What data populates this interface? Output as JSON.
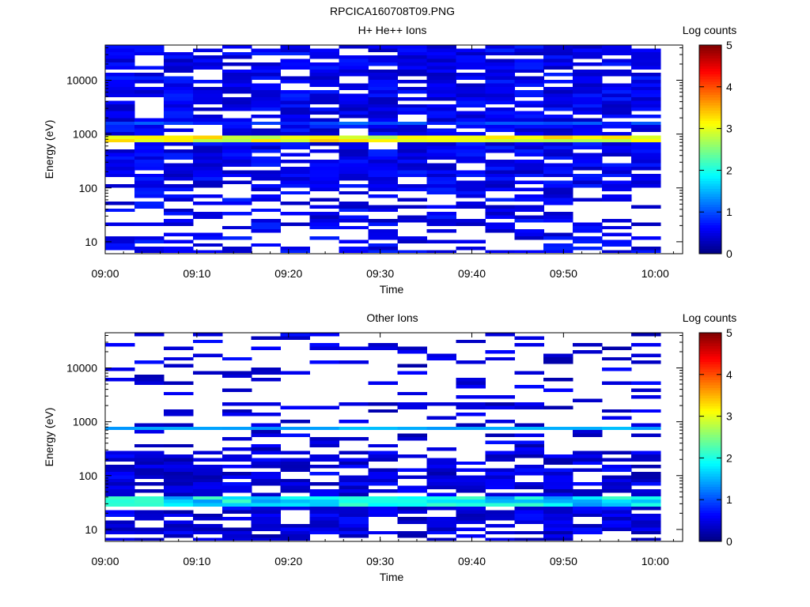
{
  "figure_title": "RPCICA160708T09.PNG",
  "colorbar": {
    "label": "Log counts",
    "range": [
      0,
      5
    ],
    "ticks": [
      "0",
      "1",
      "2",
      "3",
      "4",
      "5"
    ]
  },
  "chart_data": [
    {
      "type": "heatmap",
      "title": "H+ He++ Ions",
      "xlabel": "Time",
      "ylabel": "Energy (eV)",
      "x_ticks": [
        "09:00",
        "09:10",
        "09:20",
        "09:30",
        "09:40",
        "09:50",
        "10:00"
      ],
      "y_ticks": [
        "10",
        "100",
        "1000",
        "10000"
      ],
      "y_scale": "log",
      "x_range": [
        "09:00",
        "10:03"
      ],
      "y_range": [
        6,
        45000
      ],
      "time_bins": 19,
      "energy_bins": 60,
      "colorbar_range": [
        0,
        5
      ],
      "band": {
        "energy_eV": [
          650,
          900
        ],
        "peak_log_counts": 3.4
      },
      "secondary_band": {
        "energy_eV": [
          1400,
          1700
        ],
        "peak_log_counts": 1.2
      },
      "background_log_counts": 0.3,
      "low_energy_cutoff_eV": 6
    },
    {
      "type": "heatmap",
      "title": "Other Ions",
      "xlabel": "Time",
      "ylabel": "Energy (eV)",
      "x_ticks": [
        "09:00",
        "09:10",
        "09:20",
        "09:30",
        "09:40",
        "09:50",
        "10:00"
      ],
      "y_ticks": [
        "10",
        "100",
        "1000",
        "10000"
      ],
      "y_scale": "log",
      "x_range": [
        "09:00",
        "10:03"
      ],
      "y_range": [
        6,
        45000
      ],
      "time_bins": 19,
      "energy_bins": 60,
      "colorbar_range": [
        0,
        5
      ],
      "band": {
        "energy_eV": [
          680,
          850
        ],
        "peak_log_counts": 1.6
      },
      "secondary_band": {
        "energy_eV": [
          25,
          40
        ],
        "peak_log_counts": 2.2
      },
      "background_log_counts": 0.2,
      "low_energy_cutoff_eV": 6
    }
  ]
}
